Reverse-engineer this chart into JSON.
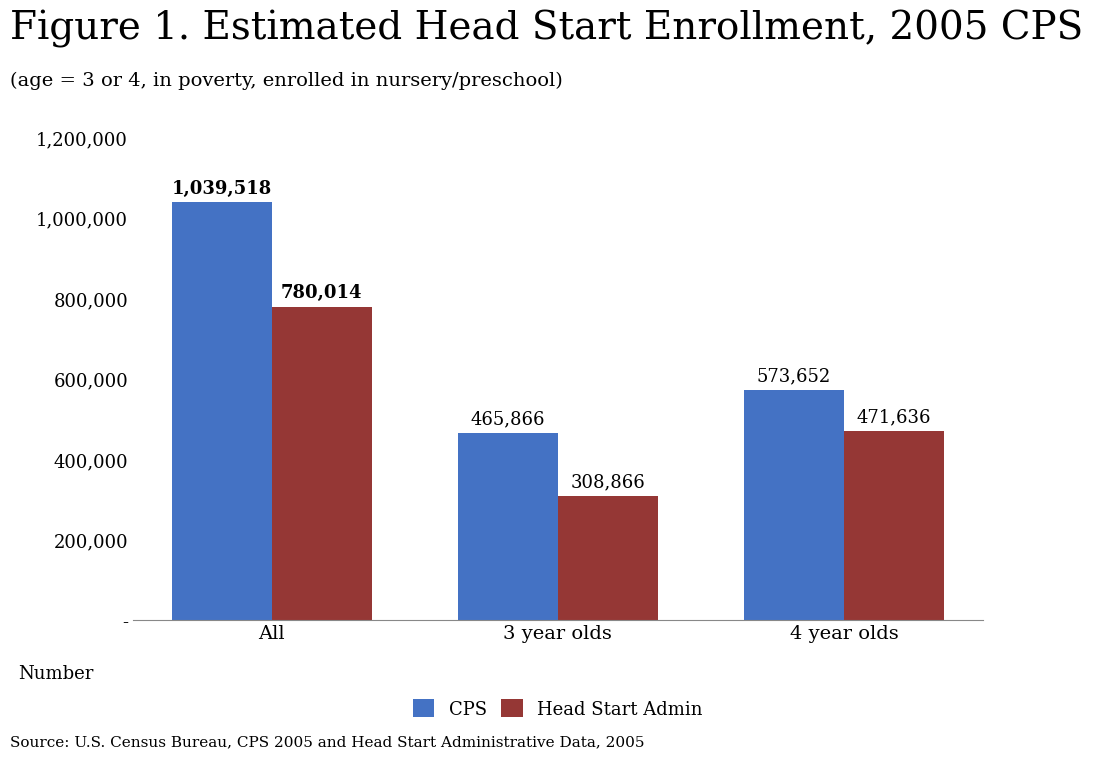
{
  "title": "Figure 1. Estimated Head Start Enrollment, 2005 CPS",
  "subtitle": "(age = 3 or 4, in poverty, enrolled in nursery/preschool)",
  "categories": [
    "All",
    "3 year olds",
    "4 year olds"
  ],
  "cps_values": [
    1039518,
    465866,
    573652
  ],
  "admin_values": [
    780014,
    308866,
    471636
  ],
  "cps_labels": [
    "1,039,518",
    "465,866",
    "573,652"
  ],
  "admin_labels": [
    "780,014",
    "308,866",
    "471,636"
  ],
  "cps_color": "#4472C4",
  "admin_color": "#953735",
  "ylim": [
    0,
    1300000
  ],
  "yticks": [
    0,
    200000,
    400000,
    600000,
    800000,
    1000000,
    1200000
  ],
  "ytick_labels": [
    "-",
    "200,000",
    "400,000",
    "600,000",
    "800,000",
    "1,000,000",
    "1,200,000"
  ],
  "legend_labels": [
    "CPS",
    "Head Start Admin"
  ],
  "source_text": "Source: U.S. Census Bureau, CPS 2005 and Head Start Administrative Data, 2005",
  "title_fontsize": 28,
  "subtitle_fontsize": 14,
  "label_fontsize": 13,
  "tick_fontsize": 13,
  "legend_fontsize": 13,
  "source_fontsize": 11,
  "bar_width": 0.35
}
